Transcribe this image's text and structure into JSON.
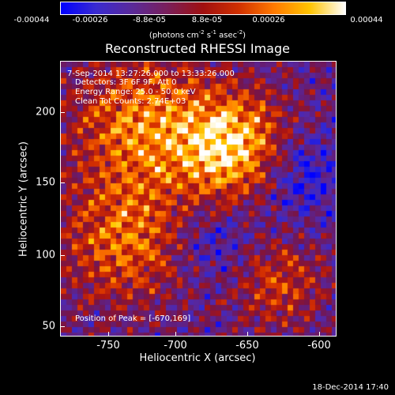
{
  "colorbar": {
    "ticks": [
      "-0.00044",
      "-0.00026",
      "-8.8e-05",
      "8.8e-05",
      "0.00026",
      "0.00044"
    ],
    "units_prefix": "(photons cm",
    "units_sup1": "-2",
    "units_mid": " s",
    "units_sup2": "-1",
    "units_mid2": " asec",
    "units_sup3": "-2",
    "units_suffix": ")",
    "colors": [
      "#0000ff",
      "#3a2bd0",
      "#5a2a9a",
      "#7a1f5a",
      "#a01010",
      "#d03000",
      "#ff7a00",
      "#ffc400",
      "#ffffff"
    ]
  },
  "title": "Reconstructed RHESSI Image",
  "annotations": {
    "time": "7-Sep-2014 13:27:26.000 to 13:33:26.000",
    "detectors": "Detectors: 3F 6F 9F, Att 0",
    "energy": "Energy Range: 25.0 - 50.0 keV",
    "clean": "Clean    Tot Counts: 2.74E+03",
    "peak": "Position of Peak = [-670,169]"
  },
  "axes": {
    "xlabel": "Heliocentric X (arcsec)",
    "ylabel": "Heliocentric Y (arcsec)",
    "xticks": [
      "-750",
      "-700",
      "-650",
      "-600"
    ],
    "yticks": [
      "200",
      "150",
      "100",
      "50"
    ]
  },
  "timestamp": "18-Dec-2014 17:40"
}
